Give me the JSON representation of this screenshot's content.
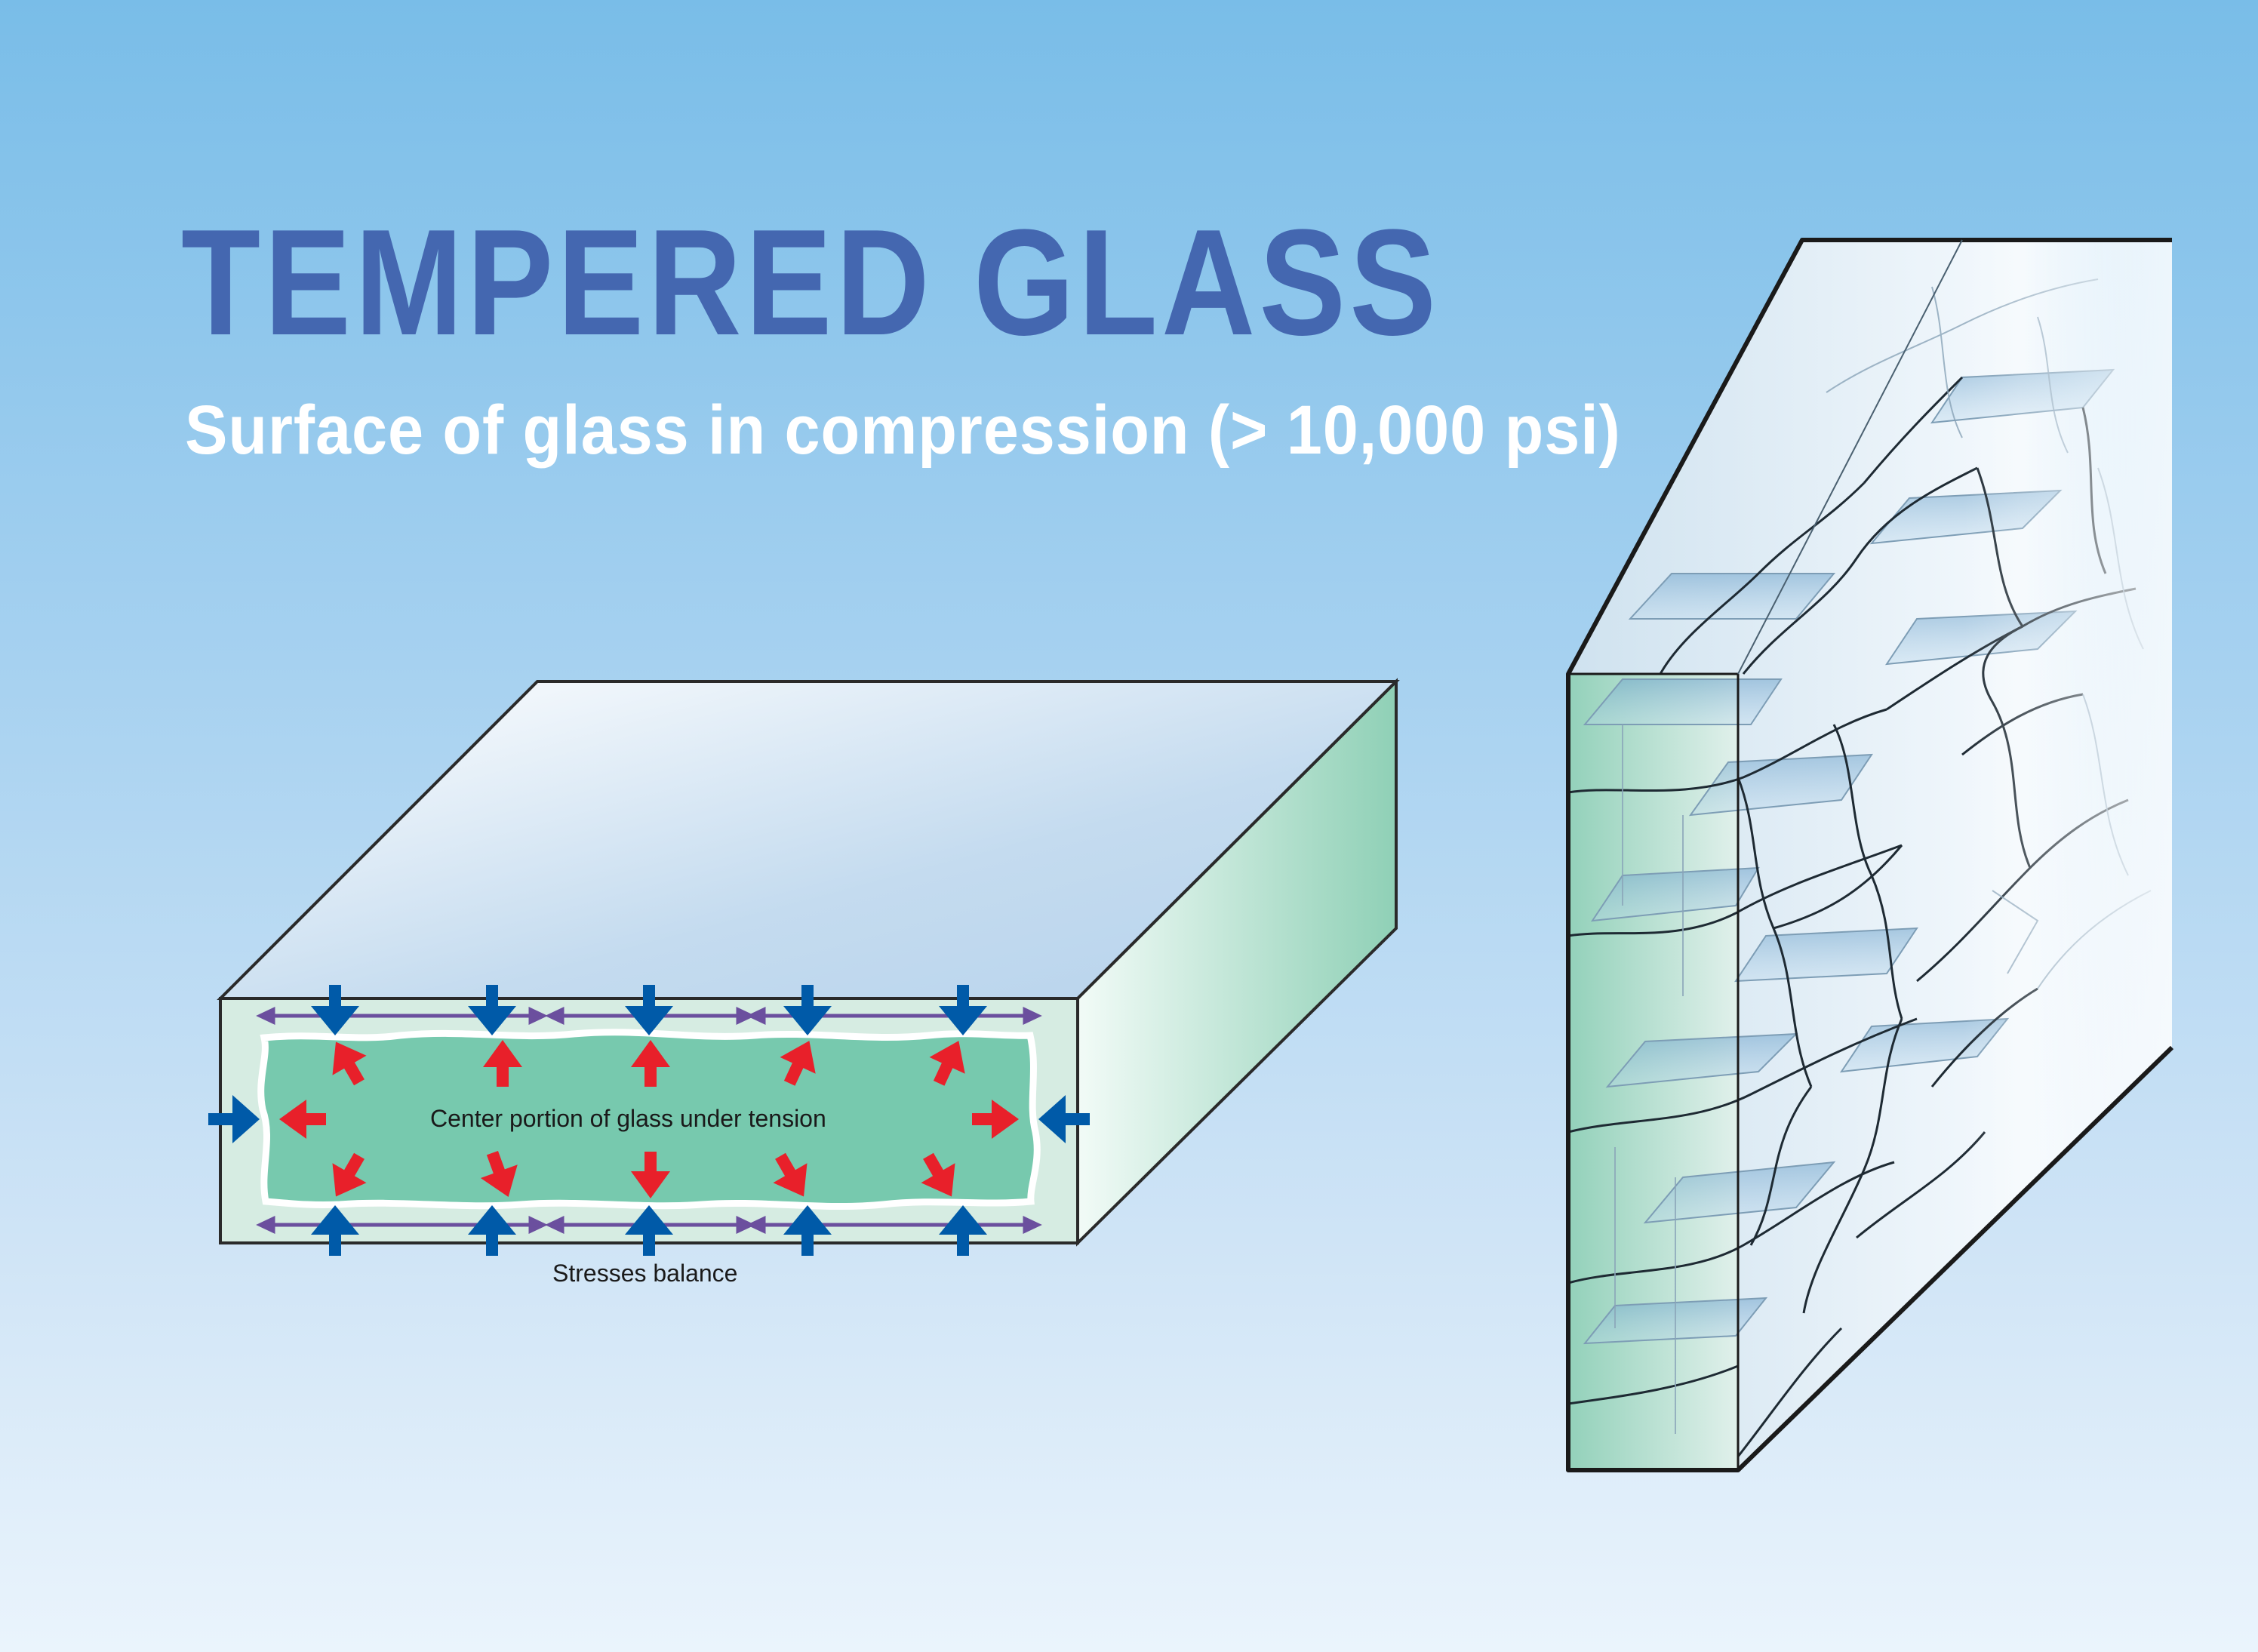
{
  "title": "TEMPERED GLASS",
  "subtitle": "Surface of glass in compression (> 10,000 psi)",
  "labels": {
    "tension": "Center portion of glass under tension",
    "balance": "Stresses balance"
  },
  "colors": {
    "title": "#4467b0",
    "compression_arrow": "#005aa8",
    "tension_arrow": "#e8202a",
    "balance_arrow": "#6b4f9e",
    "tension_zone": "#77c9ae",
    "glass_face": "#d6ece2"
  },
  "icons": [
    "compression-arrow-icon",
    "tension-arrow-icon",
    "balance-arrow-icon"
  ]
}
